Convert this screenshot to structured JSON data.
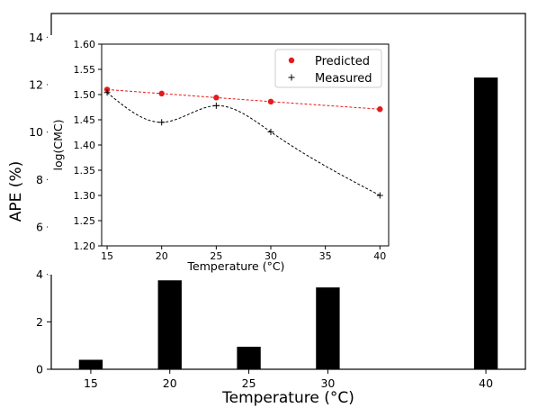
{
  "chart_data": [
    {
      "type": "bar",
      "xlabel": "Temperature (°C)",
      "ylabel": "APE (%)",
      "ylim": [
        0,
        15
      ],
      "xlim": [
        12.5,
        42.5
      ],
      "x": [
        15,
        20,
        25,
        30,
        40
      ],
      "x_ticks": [
        15,
        20,
        25,
        30,
        40
      ],
      "y_ticks": [
        0,
        2,
        4,
        6,
        8,
        10,
        12,
        14
      ],
      "values": [
        0.4,
        3.75,
        0.95,
        3.45,
        12.3
      ],
      "bar_color": "#000000",
      "grid": false
    },
    {
      "type": "line",
      "xlabel": "Temperature (°C)",
      "ylabel": "log(CMC)",
      "xlim": [
        14.5,
        40.8
      ],
      "ylim": [
        1.2,
        1.6
      ],
      "x_ticks": [
        15,
        20,
        25,
        30,
        35,
        40
      ],
      "y_ticks": [
        1.2,
        1.25,
        1.3,
        1.35,
        1.4,
        1.45,
        1.5,
        1.55,
        1.6
      ],
      "legend_position": "top-right",
      "grid": false,
      "series": [
        {
          "name": "Predicted",
          "marker": "circle",
          "color": "#e41a1c",
          "x": [
            15,
            20,
            25,
            30,
            40
          ],
          "y": [
            1.51,
            1.502,
            1.494,
            1.486,
            1.471
          ]
        },
        {
          "name": "Measured",
          "marker": "plus",
          "color": "#000000",
          "x": [
            15,
            20,
            25,
            30,
            40
          ],
          "y": [
            1.504,
            1.445,
            1.478,
            1.426,
            1.3
          ]
        }
      ]
    }
  ]
}
